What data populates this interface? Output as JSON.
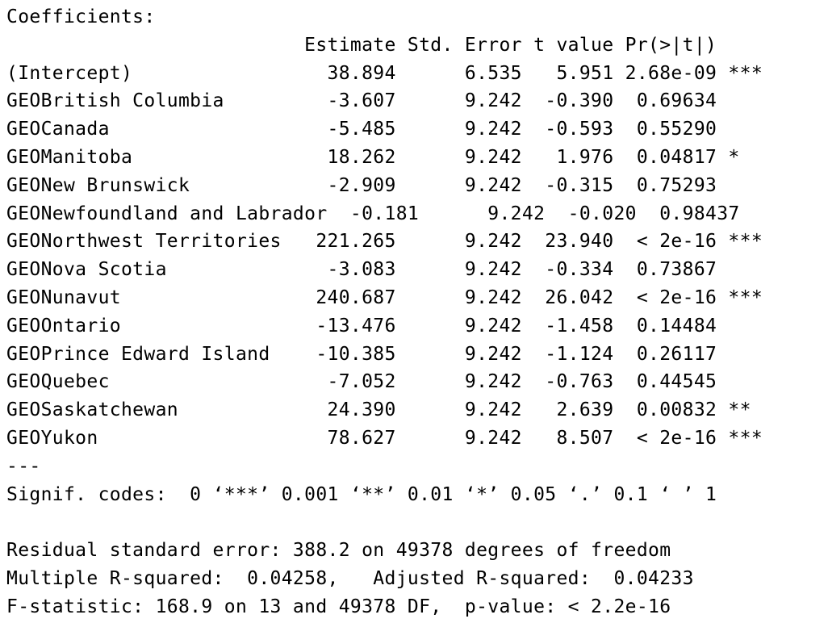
{
  "output": {
    "header": "Coefficients:",
    "column_headers": "                          Estimate Std. Error t value Pr(>|t|)    ",
    "rows": [
      {
        "text": "(Intercept)                 38.894      6.535   5.951 2.68e-09 ***"
      },
      {
        "text": "GEOBritish Columbia         -3.607      9.242  -0.390  0.69634    "
      },
      {
        "text": "GEOCanada                   -5.485      9.242  -0.593  0.55290    "
      },
      {
        "text": "GEOManitoba                 18.262      9.242   1.976  0.04817 *  "
      },
      {
        "text": "GEONew Brunswick            -2.909      9.242  -0.315  0.75293    "
      },
      {
        "text": "GEONewfoundland and Labrador  -0.181      9.242  -0.020  0.98437    "
      },
      {
        "text": "GEONorthwest Territories   221.265      9.242  23.940  < 2e-16 ***"
      },
      {
        "text": "GEONova Scotia              -3.083      9.242  -0.334  0.73867    "
      },
      {
        "text": "GEONunavut                 240.687      9.242  26.042  < 2e-16 ***"
      },
      {
        "text": "GEOOntario                 -13.476      9.242  -1.458  0.14484    "
      },
      {
        "text": "GEOPrince Edward Island    -10.385      9.242  -1.124  0.26117    "
      },
      {
        "text": "GEOQuebec                   -7.052      9.242  -0.763  0.44545    "
      },
      {
        "text": "GEOSaskatchewan             24.390      9.242   2.639  0.00832 ** "
      },
      {
        "text": "GEOYukon                    78.627      9.242   8.507  < 2e-16 ***"
      }
    ],
    "separator": "---",
    "signif_codes": "Signif. codes:  0 ‘***’ 0.001 ‘**’ 0.01 ‘*’ 0.05 ‘.’ 0.1 ‘ ’ 1",
    "blank": " ",
    "residual_se": "Residual standard error: 388.2 on 49378 degrees of freedom",
    "r_squared": "Multiple R-squared:  0.04258,\tAdjusted R-squared:  0.04233 ",
    "f_statistic": "F-statistic: 168.9 on 13 and 49378 DF,  p-value: < 2.2e-16"
  }
}
